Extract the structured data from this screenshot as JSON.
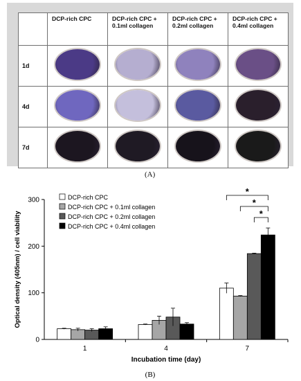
{
  "panel_a": {
    "column_headers": [
      "DCP-rich CPC",
      "DCP-rich CPC + 0.1ml collagen",
      "DCP-rich CPC + 0.2ml collagen",
      "DCP-rich CPC + 0.4ml collagen"
    ],
    "rows": [
      {
        "label": "1d",
        "swatches": [
          "#4b3a86",
          "#b5aed0",
          "#8f82bd",
          "#6a4f86"
        ]
      },
      {
        "label": "4d",
        "swatches": [
          "#6f67bf",
          "#c4bfdc",
          "#5a5aa0",
          "#2a1f2c"
        ]
      },
      {
        "label": "7d",
        "swatches": [
          "#1c1620",
          "#1f1a24",
          "#17131b",
          "#1a1a1a"
        ]
      }
    ],
    "caption": "(A)"
  },
  "chart_data": {
    "type": "bar",
    "categories": [
      "1",
      "4",
      "7"
    ],
    "series": [
      {
        "name": "DCP-rich CPC",
        "color": "#ffffff",
        "values": [
          23,
          32,
          110
        ],
        "errors": [
          1,
          1,
          11
        ]
      },
      {
        "name": "DCP-rich CPC + 0.1ml collagen",
        "color": "#a6a6a6",
        "values": [
          21,
          41,
          93
        ],
        "errors": [
          3,
          9,
          1
        ]
      },
      {
        "name": "DCP-rich CPC + 0.2ml collagen",
        "color": "#595959",
        "values": [
          20,
          48,
          184
        ],
        "errors": [
          3,
          19,
          1
        ]
      },
      {
        "name": "DCP-rich CPC + 0.4ml collagen",
        "color": "#000000",
        "values": [
          23,
          33,
          224
        ],
        "errors": [
          4,
          3,
          15
        ]
      }
    ],
    "ylim": [
      0,
      300
    ],
    "yticks": [
      0,
      100,
      200,
      300
    ],
    "xlabel": "Incubation time (day)",
    "ylabel": "Optical density (405nm) / cell viability",
    "legend_position": "top-left",
    "significance_marker": "*",
    "significance": [
      {
        "category": "7",
        "from_series": 0,
        "to_series": 3,
        "marker": "*"
      },
      {
        "category": "7",
        "from_series": 1,
        "to_series": 3,
        "marker": "*"
      },
      {
        "category": "7",
        "from_series": 2,
        "to_series": 3,
        "marker": "*"
      }
    ],
    "caption": "(B)"
  }
}
